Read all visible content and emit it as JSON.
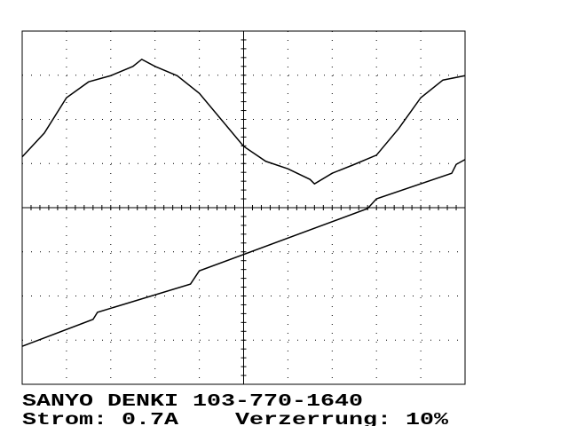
{
  "chart_data": {
    "type": "line",
    "title": "SANYO DENKI 103-770-1640",
    "annotations": [
      "Strom: 0.7A",
      "Verzerrung: 10%"
    ],
    "xlim": [
      0,
      10
    ],
    "ylim": [
      -4,
      4
    ],
    "xticks": [
      0,
      1,
      2,
      3,
      4,
      5,
      6,
      7,
      8,
      9,
      10
    ],
    "yticks": [
      -4,
      -3,
      -2,
      -1,
      0,
      1,
      2,
      3,
      4
    ],
    "grid": true,
    "series": [
      {
        "color": "#000000",
        "x": [
          0,
          0.5,
          1,
          1.5,
          2,
          2.5,
          2.7,
          3,
          3.5,
          4,
          4.5,
          5,
          5.5,
          6,
          6.5,
          6.6,
          7,
          7.5,
          8,
          8.5,
          9,
          9.5,
          10
        ],
        "values": [
          1.15,
          1.69,
          2.49,
          2.85,
          2.99,
          3.2,
          3.36,
          3.2,
          2.99,
          2.59,
          1.99,
          1.39,
          1.05,
          0.88,
          0.64,
          0.54,
          0.78,
          0.98,
          1.19,
          1.79,
          2.49,
          2.89,
          2.99
        ]
      },
      {
        "color": "#000000",
        "x": [
          0,
          1.6,
          1.7,
          3.8,
          4.0,
          7.8,
          8.0,
          9.7,
          9.8,
          10
        ],
        "values": [
          -3.14,
          -2.53,
          -2.37,
          -1.73,
          -1.43,
          -0.02,
          0.2,
          0.78,
          0.98,
          1.09
        ]
      }
    ]
  }
}
